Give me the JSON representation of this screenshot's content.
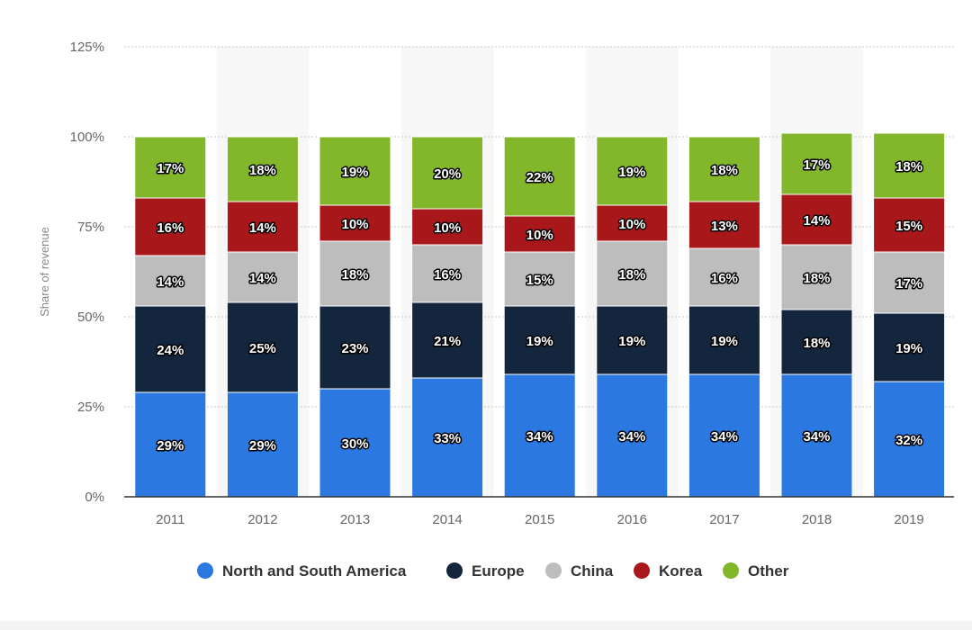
{
  "chart_data": {
    "type": "bar",
    "stacked": true,
    "categories": [
      "2011",
      "2012",
      "2013",
      "2014",
      "2015",
      "2016",
      "2017",
      "2018",
      "2019"
    ],
    "series": [
      {
        "name": "North and South America",
        "color": "#2a78e0",
        "values": [
          29,
          29,
          30,
          33,
          34,
          34,
          34,
          34,
          32
        ]
      },
      {
        "name": "Europe",
        "color": "#13263d",
        "values": [
          24,
          25,
          23,
          21,
          19,
          19,
          19,
          18,
          19
        ]
      },
      {
        "name": "China",
        "color": "#bdbdbd",
        "values": [
          14,
          14,
          18,
          16,
          15,
          18,
          16,
          18,
          17
        ]
      },
      {
        "name": "Korea",
        "color": "#a8171a",
        "values": [
          16,
          14,
          10,
          10,
          10,
          10,
          13,
          14,
          15
        ]
      },
      {
        "name": "Other",
        "color": "#82b62b",
        "values": [
          17,
          18,
          19,
          20,
          22,
          19,
          18,
          17,
          18
        ]
      }
    ],
    "yticks": [
      "0%",
      "25%",
      "50%",
      "75%",
      "100%",
      "125%"
    ],
    "ylabel": "Share of revenue",
    "xlabel": "",
    "title": "",
    "ylim": [
      0,
      125
    ],
    "grid": true,
    "legend_position": "bottom"
  }
}
